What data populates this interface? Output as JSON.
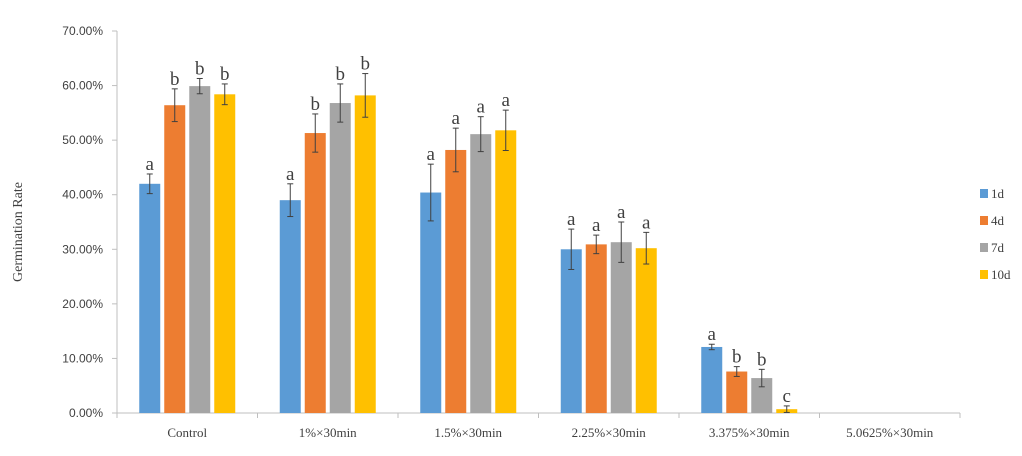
{
  "chart_data": {
    "type": "bar",
    "title": "",
    "xlabel": "",
    "ylabel": "Germination Rate",
    "ylim": [
      0,
      0.7
    ],
    "ytick_labels": [
      "0.00%",
      "10.00%",
      "20.00%",
      "30.00%",
      "40.00%",
      "50.00%",
      "60.00%",
      "70.00%"
    ],
    "grid": false,
    "legend_position": "right",
    "categories": [
      "Control",
      "1%×30min",
      "1.5%×30min",
      "2.25%×30min",
      "3.375%×30min",
      "5.0625%×30min"
    ],
    "series": [
      {
        "name": "1d",
        "color": "#5B9BD5",
        "values": [
          0.42,
          0.39,
          0.404,
          0.3,
          0.121,
          0
        ],
        "errors": [
          0.018,
          0.03,
          0.052,
          0.037,
          0.005,
          0
        ],
        "labels": [
          "a",
          "a",
          "a",
          "a",
          "a",
          ""
        ]
      },
      {
        "name": "4d",
        "color": "#ED7D31",
        "values": [
          0.564,
          0.513,
          0.482,
          0.309,
          0.076,
          0
        ],
        "errors": [
          0.03,
          0.035,
          0.04,
          0.017,
          0.009,
          0
        ],
        "labels": [
          "b",
          "b",
          "a",
          "a",
          "b",
          ""
        ]
      },
      {
        "name": "7d",
        "color": "#A5A5A5",
        "values": [
          0.599,
          0.568,
          0.511,
          0.313,
          0.064,
          0
        ],
        "errors": [
          0.014,
          0.035,
          0.032,
          0.037,
          0.016,
          0
        ],
        "labels": [
          "b",
          "b",
          "a",
          "a",
          "b",
          ""
        ]
      },
      {
        "name": "10d",
        "color": "#FFC000",
        "values": [
          0.584,
          0.582,
          0.518,
          0.302,
          0.007,
          0
        ],
        "errors": [
          0.019,
          0.04,
          0.037,
          0.029,
          0.006,
          0
        ],
        "labels": [
          "b",
          "b",
          "a",
          "a",
          "c",
          ""
        ]
      }
    ]
  }
}
